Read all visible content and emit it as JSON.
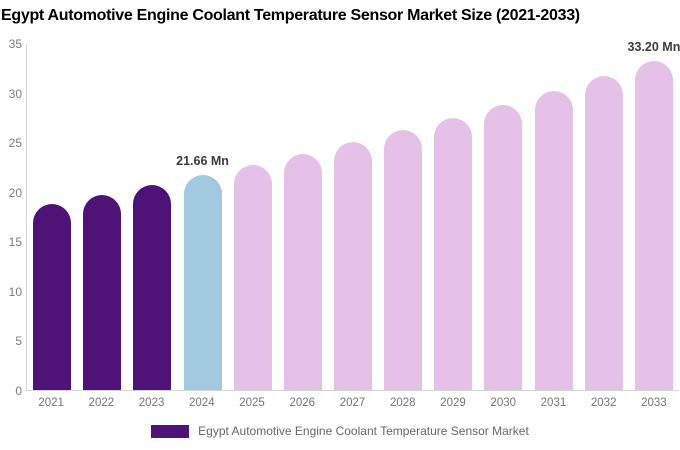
{
  "title": "Egypt Automotive Engine Coolant Temperature Sensor Market Size (2021-2033)",
  "chart_data": {
    "type": "bar",
    "title": "Egypt Automotive Engine Coolant Temperature Sensor Market Size (2021-2033)",
    "categories": [
      "2021",
      "2022",
      "2023",
      "2024",
      "2025",
      "2026",
      "2027",
      "2028",
      "2029",
      "2030",
      "2031",
      "2032",
      "2033"
    ],
    "values": [
      18.79,
      19.7,
      20.66,
      21.66,
      22.71,
      23.82,
      24.97,
      26.19,
      27.46,
      28.79,
      30.19,
      31.66,
      33.2
    ],
    "unit": "Mn",
    "ylim": [
      0,
      35
    ],
    "yticks": [
      0,
      5,
      10,
      15,
      20,
      25,
      30,
      35
    ],
    "grid": false,
    "legend_position": "bottom",
    "bar_colors": [
      "#4f1378",
      "#4f1378",
      "#4f1378",
      "#a1c9df",
      "#e6c1e7",
      "#e6c1e7",
      "#e6c1e7",
      "#e6c1e7",
      "#e6c1e7",
      "#e6c1e7",
      "#e6c1e7",
      "#e6c1e7",
      "#e6c1e7"
    ],
    "data_labels": [
      {
        "category": "2024",
        "text": "21.66 Mn"
      },
      {
        "category": "2033",
        "text": "33.20 Mn"
      }
    ],
    "legend": {
      "label": "Egypt Automotive Engine Coolant Temperature Sensor Market",
      "swatch_color": "#4f1378"
    },
    "colors": {
      "historical": "#4f1378",
      "current_year": "#a1c9df",
      "forecast": "#e6c1e7",
      "axis_line": "#d6d6d6",
      "axis_text": "#757575",
      "value_label_text": "#3b3b3b"
    }
  }
}
